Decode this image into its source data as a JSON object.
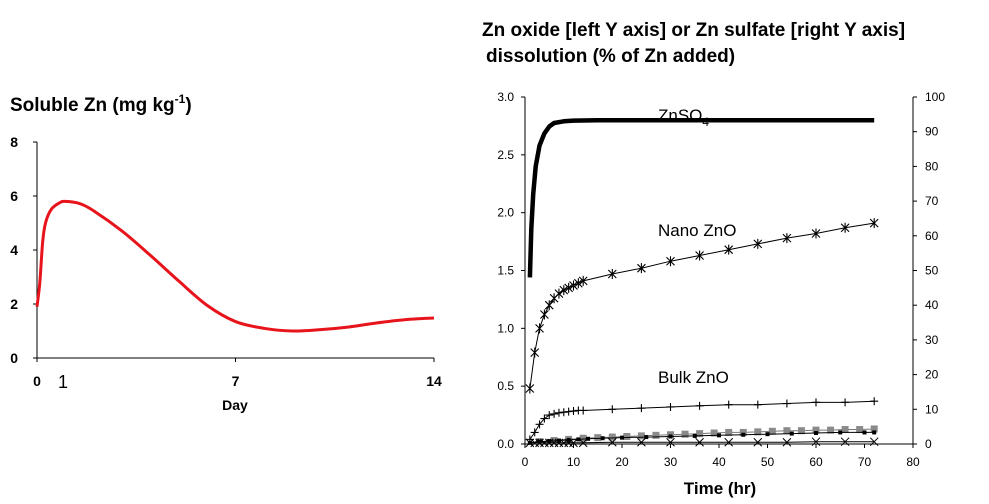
{
  "chart_data": [
    {
      "type": "line",
      "title": "Soluble Zn (mg kg",
      "title_superscript": "-1",
      "title_close": ")",
      "xlabel": "Day",
      "ylabel": "",
      "xlim": [
        0,
        14
      ],
      "ylim": [
        0,
        8
      ],
      "x_ticks": [
        "0",
        "7",
        "14"
      ],
      "x_extra_tick": "1",
      "y_ticks": [
        "0",
        "2",
        "4",
        "6",
        "8"
      ],
      "grid": false,
      "color": "#e8141b",
      "series": [
        {
          "x": [
            0,
            0.1,
            0.2,
            0.3,
            0.5,
            0.8,
            1.0,
            1.5,
            2.0,
            3.0,
            4.0,
            5.0,
            6.0,
            7.0,
            8.0,
            9.0,
            10.0,
            11.0,
            12.0,
            13.0,
            14.0
          ],
          "y": [
            1.9,
            2.8,
            4.3,
            5.0,
            5.5,
            5.75,
            5.8,
            5.72,
            5.45,
            4.7,
            3.8,
            2.85,
            1.95,
            1.35,
            1.1,
            1.0,
            1.05,
            1.15,
            1.3,
            1.42,
            1.48
          ]
        }
      ]
    },
    {
      "type": "line",
      "title": "Zn oxide [left Y axis] or Zn sulfate [right Y axis]",
      "title_line2": "dissolution (% of Zn added)",
      "xlabel": "Time (hr)",
      "ylabel": "",
      "xlim": [
        0,
        80
      ],
      "ylim": [
        0,
        3.0
      ],
      "ylim_right": [
        0,
        100
      ],
      "x_ticks": [
        "0",
        "10",
        "20",
        "30",
        "40",
        "50",
        "60",
        "70",
        "80"
      ],
      "y_ticks": [
        "0.0",
        "0.5",
        "1.0",
        "1.5",
        "2.0",
        "2.5",
        "3.0"
      ],
      "y_ticks_right": [
        "0",
        "10",
        "20",
        "30",
        "40",
        "50",
        "60",
        "70",
        "80",
        "90",
        "100"
      ],
      "grid": false,
      "annotations": [
        {
          "text": "ZnSO",
          "sub": "4"
        },
        {
          "text": "Nano ZnO"
        },
        {
          "text": "Bulk ZnO"
        }
      ],
      "series": [
        {
          "axis": "right",
          "line_style": "thick",
          "x": [
            1,
            1.3,
            1.7,
            2.2,
            3,
            4,
            5,
            6,
            8,
            10,
            15,
            20,
            30,
            40,
            50,
            60,
            72
          ],
          "y": [
            48,
            62,
            72,
            80,
            86,
            89.5,
            91.5,
            92.5,
            93,
            93.2,
            93.3,
            93.3,
            93.3,
            93.3,
            93.3,
            93.3,
            93.3
          ]
        },
        {
          "axis": "left",
          "marker": "asterisk",
          "x": [
            1,
            2,
            3,
            4,
            5,
            6,
            7,
            8,
            9,
            10,
            11,
            12,
            18,
            24,
            30,
            36,
            42,
            48,
            54,
            60,
            66,
            72
          ],
          "y": [
            0.48,
            0.79,
            1.0,
            1.12,
            1.2,
            1.26,
            1.3,
            1.33,
            1.35,
            1.37,
            1.39,
            1.41,
            1.47,
            1.52,
            1.58,
            1.63,
            1.68,
            1.73,
            1.78,
            1.82,
            1.87,
            1.91
          ]
        },
        {
          "axis": "left",
          "marker": "plus",
          "x": [
            1,
            2,
            3,
            4,
            5,
            6,
            7,
            8,
            9,
            10,
            11,
            12,
            18,
            24,
            30,
            36,
            42,
            48,
            54,
            60,
            66,
            72
          ],
          "y": [
            0.04,
            0.1,
            0.17,
            0.22,
            0.25,
            0.26,
            0.27,
            0.275,
            0.28,
            0.285,
            0.29,
            0.29,
            0.3,
            0.31,
            0.32,
            0.33,
            0.34,
            0.34,
            0.35,
            0.36,
            0.36,
            0.37
          ]
        },
        {
          "axis": "left",
          "marker": "square",
          "x": [
            3,
            6,
            9,
            12,
            15,
            18,
            21,
            24,
            27,
            30,
            33,
            36,
            39,
            42,
            45,
            48,
            51,
            54,
            57,
            60,
            63,
            66,
            69,
            72
          ],
          "y": [
            0.02,
            0.03,
            0.04,
            0.05,
            0.055,
            0.06,
            0.065,
            0.07,
            0.075,
            0.08,
            0.085,
            0.09,
            0.095,
            0.1,
            0.1,
            0.105,
            0.11,
            0.115,
            0.115,
            0.12,
            0.12,
            0.125,
            0.125,
            0.13
          ]
        },
        {
          "axis": "left",
          "marker": "dot",
          "x": [
            1,
            3,
            5,
            7,
            9,
            11,
            13,
            16,
            20,
            25,
            30,
            35,
            40,
            45,
            50,
            55,
            60,
            65,
            70,
            72
          ],
          "y": [
            0.01,
            0.02,
            0.025,
            0.03,
            0.035,
            0.04,
            0.045,
            0.05,
            0.055,
            0.06,
            0.065,
            0.07,
            0.075,
            0.08,
            0.085,
            0.09,
            0.095,
            0.1,
            0.1,
            0.1
          ]
        },
        {
          "axis": "left",
          "marker": "cross",
          "x": [
            1,
            2,
            3,
            4,
            5,
            6,
            7,
            8,
            9,
            10,
            12,
            18,
            24,
            30,
            36,
            42,
            48,
            54,
            60,
            66,
            72
          ],
          "y": [
            0.01,
            0.01,
            0.01,
            0.01,
            0.01,
            0.01,
            0.01,
            0.01,
            0.01,
            0.01,
            0.01,
            0.015,
            0.015,
            0.015,
            0.015,
            0.015,
            0.015,
            0.015,
            0.02,
            0.02,
            0.02
          ]
        }
      ]
    }
  ]
}
